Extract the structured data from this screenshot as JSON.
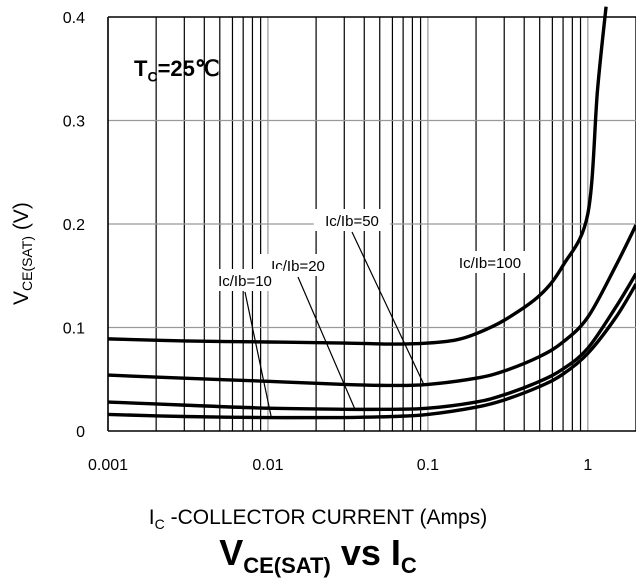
{
  "chart_data": {
    "type": "line",
    "xscale": "log",
    "xlim": [
      0.001,
      2
    ],
    "ylim": [
      0,
      0.4
    ],
    "x_ticks": [
      "0.001",
      "0.01",
      "0.1",
      "1"
    ],
    "y_ticks": [
      "0",
      "0.1",
      "0.2",
      "0.3",
      "0.4"
    ],
    "ylabel_main": "V",
    "ylabel_sub": "CE(SAT)",
    "ylabel_unit": " (V)",
    "xlabel_main": "I",
    "xlabel_sub": "C",
    "xlabel_rest": " -COLLECTOR CURRENT (Amps)",
    "title_main": "V",
    "title_sub1": "CE(SAT)",
    "title_mid": " vs I",
    "title_sub2": "C",
    "condition_main": "T",
    "condition_sub": "C",
    "condition_rest": "=25℃",
    "grid": true,
    "series": [
      {
        "name": "Ic/Ib=100",
        "x": [
          0.001,
          0.003,
          0.01,
          0.03,
          0.06,
          0.1,
          0.15,
          0.2,
          0.3,
          0.5,
          0.7,
          1.0,
          1.15,
          1.3
        ],
        "y": [
          0.089,
          0.087,
          0.086,
          0.085,
          0.084,
          0.085,
          0.088,
          0.094,
          0.107,
          0.131,
          0.16,
          0.21,
          0.33,
          0.41
        ]
      },
      {
        "name": "Ic/Ib=50",
        "x": [
          0.001,
          0.003,
          0.01,
          0.03,
          0.06,
          0.1,
          0.2,
          0.3,
          0.5,
          0.7,
          1.0,
          1.5,
          2.0
        ],
        "y": [
          0.054,
          0.051,
          0.048,
          0.045,
          0.044,
          0.045,
          0.051,
          0.058,
          0.072,
          0.086,
          0.11,
          0.16,
          0.199
        ]
      },
      {
        "name": "Ic/Ib=20",
        "x": [
          0.001,
          0.003,
          0.01,
          0.03,
          0.06,
          0.1,
          0.2,
          0.3,
          0.5,
          0.7,
          1.0,
          1.5,
          2.0
        ],
        "y": [
          0.028,
          0.025,
          0.022,
          0.021,
          0.021,
          0.022,
          0.028,
          0.035,
          0.048,
          0.06,
          0.08,
          0.12,
          0.152
        ]
      },
      {
        "name": "Ic/Ib=10",
        "x": [
          0.001,
          0.003,
          0.01,
          0.03,
          0.06,
          0.1,
          0.2,
          0.3,
          0.5,
          0.7,
          1.0,
          1.5,
          2.0
        ],
        "y": [
          0.016,
          0.014,
          0.013,
          0.013,
          0.014,
          0.016,
          0.023,
          0.03,
          0.043,
          0.055,
          0.075,
          0.11,
          0.142
        ]
      }
    ],
    "annotations": [
      {
        "text": "Ic/Ib=50",
        "series": "Ic/Ib=50",
        "point": [
          0.095,
          0.044
        ]
      },
      {
        "text": "Ic/Ib=20",
        "series": "Ic/Ib=20",
        "point": [
          0.035,
          0.021
        ]
      },
      {
        "text": "Ic/Ib=10",
        "series": "Ic/Ib=10",
        "point": [
          0.0105,
          0.013
        ]
      },
      {
        "text": "Ic/Ib=100",
        "series": "Ic/Ib=100",
        "point": null
      }
    ]
  }
}
